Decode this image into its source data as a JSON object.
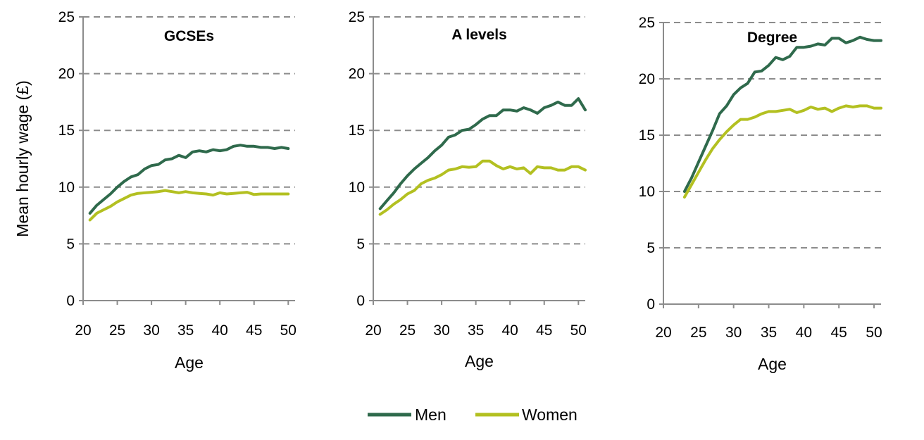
{
  "colors": {
    "men": "#2f6a4c",
    "women": "#b3c021",
    "grid": "#8c8c8c",
    "axis": "#8c8c8c"
  },
  "ylabel": "Mean hourly wage (£)",
  "legend": {
    "position": "bottom-center",
    "men": "Men",
    "women": "Women"
  },
  "chart_data": [
    {
      "type": "line",
      "title": "GCSEs",
      "xlabel": "Age",
      "ylabel": "Mean hourly wage (£)",
      "xlim": [
        20,
        51
      ],
      "ylim": [
        0,
        25
      ],
      "xticks": [
        20,
        25,
        30,
        35,
        40,
        45,
        50
      ],
      "yticks": [
        0,
        5,
        10,
        15,
        20,
        25
      ],
      "grid": "horizontal-dashed",
      "x": [
        21,
        22,
        23,
        24,
        25,
        26,
        27,
        28,
        29,
        30,
        31,
        32,
        33,
        34,
        35,
        36,
        37,
        38,
        39,
        40,
        41,
        42,
        43,
        44,
        45,
        46,
        47,
        48,
        49,
        50
      ],
      "series": [
        {
          "name": "Men",
          "values": [
            7.7,
            8.4,
            8.9,
            9.4,
            10.0,
            10.5,
            10.9,
            11.1,
            11.6,
            11.9,
            12.0,
            12.4,
            12.5,
            12.8,
            12.6,
            13.1,
            13.2,
            13.1,
            13.3,
            13.2,
            13.3,
            13.6,
            13.7,
            13.6,
            13.6,
            13.5,
            13.5,
            13.4,
            13.5,
            13.4
          ]
        },
        {
          "name": "Women",
          "values": [
            7.1,
            7.7,
            8.0,
            8.3,
            8.7,
            9.0,
            9.3,
            9.45,
            9.5,
            9.55,
            9.6,
            9.7,
            9.6,
            9.5,
            9.6,
            9.5,
            9.45,
            9.4,
            9.3,
            9.5,
            9.4,
            9.45,
            9.5,
            9.55,
            9.35,
            9.4,
            9.4,
            9.4,
            9.4,
            9.4
          ]
        }
      ]
    },
    {
      "type": "line",
      "title": "A levels",
      "xlabel": "Age",
      "ylabel": "",
      "xlim": [
        20,
        51
      ],
      "ylim": [
        0,
        25
      ],
      "xticks": [
        20,
        25,
        30,
        35,
        40,
        45,
        50
      ],
      "yticks": [
        0,
        5,
        10,
        15,
        20,
        25
      ],
      "grid": "horizontal-dashed",
      "x": [
        21,
        22,
        23,
        24,
        25,
        26,
        27,
        28,
        29,
        30,
        31,
        32,
        33,
        34,
        35,
        36,
        37,
        38,
        39,
        40,
        41,
        42,
        43,
        44,
        45,
        46,
        47,
        48,
        49,
        50,
        51
      ],
      "series": [
        {
          "name": "Men",
          "values": [
            8.1,
            8.8,
            9.5,
            10.3,
            11.0,
            11.6,
            12.1,
            12.6,
            13.2,
            13.7,
            14.4,
            14.6,
            15.0,
            15.1,
            15.5,
            16.0,
            16.3,
            16.3,
            16.8,
            16.8,
            16.7,
            17.0,
            16.8,
            16.5,
            17.0,
            17.2,
            17.5,
            17.2,
            17.2,
            17.8,
            16.8
          ]
        },
        {
          "name": "Women",
          "values": [
            7.6,
            8.0,
            8.5,
            8.9,
            9.4,
            9.7,
            10.3,
            10.6,
            10.8,
            11.1,
            11.5,
            11.6,
            11.8,
            11.75,
            11.8,
            12.3,
            12.3,
            11.9,
            11.6,
            11.8,
            11.6,
            11.7,
            11.2,
            11.8,
            11.7,
            11.7,
            11.5,
            11.5,
            11.8,
            11.8,
            11.5
          ]
        }
      ]
    },
    {
      "type": "line",
      "title": "Degree",
      "xlabel": "Age",
      "ylabel": "",
      "xlim": [
        20,
        51
      ],
      "ylim": [
        0,
        25
      ],
      "xticks": [
        20,
        25,
        30,
        35,
        40,
        45,
        50
      ],
      "yticks": [
        0,
        5,
        10,
        15,
        20,
        25
      ],
      "grid": "horizontal-dashed",
      "x": [
        23,
        24,
        25,
        26,
        27,
        28,
        29,
        30,
        31,
        32,
        33,
        34,
        35,
        36,
        37,
        38,
        39,
        40,
        41,
        42,
        43,
        44,
        45,
        46,
        47,
        48,
        49,
        50,
        51
      ],
      "series": [
        {
          "name": "Men",
          "values": [
            10.0,
            11.2,
            12.6,
            14.0,
            15.4,
            16.9,
            17.6,
            18.6,
            19.2,
            19.6,
            20.6,
            20.7,
            21.2,
            21.9,
            21.7,
            22.0,
            22.8,
            22.8,
            22.9,
            23.1,
            23.0,
            23.6,
            23.6,
            23.2,
            23.4,
            23.7,
            23.5,
            23.4,
            23.4
          ]
        },
        {
          "name": "Women",
          "values": [
            9.5,
            10.6,
            11.7,
            12.8,
            13.8,
            14.6,
            15.3,
            15.9,
            16.4,
            16.4,
            16.6,
            16.9,
            17.1,
            17.1,
            17.2,
            17.3,
            17.0,
            17.2,
            17.5,
            17.3,
            17.4,
            17.1,
            17.4,
            17.6,
            17.5,
            17.6,
            17.6,
            17.4,
            17.4
          ]
        }
      ]
    }
  ]
}
